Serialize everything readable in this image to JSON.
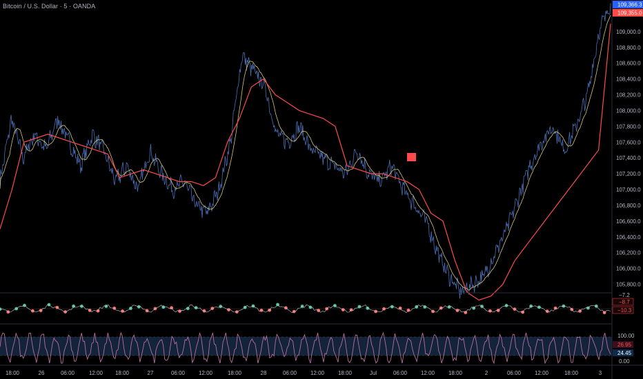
{
  "header": {
    "title": "Bitcoin / U.S. Dollar · 5 · OANDA"
  },
  "colors": {
    "background": "#000000",
    "price_line": "#4a6fb5",
    "ma_fast": "#d8c77a",
    "ma_red": "#ff4a4a",
    "osc_line": "#b86fa0",
    "osc_band": "#12233a",
    "axis_text": "#b2b5be"
  },
  "price_axis": {
    "labels": [
      "109,000.0",
      "108,800.0",
      "108,600.0",
      "108,400.0",
      "108,200.0",
      "108,000.0",
      "107,800.0",
      "107,600.0",
      "107,400.0",
      "107,200.0",
      "107,000.0",
      "106,800.0",
      "106,600.0",
      "106,400.0",
      "106,200.0",
      "106,000.0",
      "105,800.0"
    ],
    "current_price": "109,366.3",
    "secondary_price": "109,355.0"
  },
  "macd_axis": {
    "top_label": "−7.2",
    "mid_label": "−8.7",
    "low_label": "−10.3"
  },
  "stoch_axis": {
    "upper_label": "100.00",
    "k_value": "26.95",
    "d_value": "24.45",
    "lower_label": "0.00"
  },
  "time_axis": {
    "labels": [
      "18:00",
      "26",
      "06:00",
      "12:00",
      "18:00",
      "27",
      "06:00",
      "12:00",
      "18:00",
      "28",
      "06:00",
      "12:00",
      "18:00",
      "Jul",
      "06:00",
      "12:00",
      "18:00",
      "2",
      "06:00",
      "12:00",
      "18:00",
      "3"
    ]
  },
  "chart_data": {
    "type": "line",
    "x_labels": [
      "18:00",
      "26",
      "06:00",
      "12:00",
      "18:00",
      "27",
      "06:00",
      "12:00",
      "18:00",
      "28",
      "06:00",
      "12:00",
      "18:00",
      "Jul",
      "06:00",
      "12:00",
      "18:00",
      "2",
      "06:00",
      "12:00",
      "18:00",
      "3"
    ],
    "ylim": [
      105700,
      109400
    ],
    "series": [
      {
        "values": [
          107100,
          107900,
          107400,
          107700,
          107500,
          107900,
          107600,
          107300,
          107700,
          107500,
          107100,
          107300,
          107000,
          107500,
          107200,
          107000,
          107100,
          106800,
          106700,
          107000,
          107600,
          108700,
          108500,
          108300,
          107700,
          107600,
          107800,
          107500,
          107400,
          107300,
          107200,
          107500,
          107200,
          107100,
          107300,
          107000,
          106800,
          106600,
          106200,
          105900,
          105700,
          105800,
          105900,
          106200,
          106500,
          106900,
          107300,
          107600,
          107800,
          107500,
          107800,
          108200,
          109000,
          109366
        ]
      }
    ],
    "ma_red_values": [
      106500,
      107000,
      107600,
      107650,
      107700,
      107650,
      107600,
      107550,
      107500,
      107450,
      107150,
      107200,
      107250,
      107200,
      107150,
      107100,
      107100,
      107050,
      107150,
      107600,
      107900,
      108300,
      108400,
      108200,
      108100,
      108000,
      107950,
      107900,
      107800,
      107300,
      107250,
      107200,
      107200,
      107150,
      107100,
      107000,
      106700,
      106600,
      106100,
      105700,
      105600,
      105650,
      105800,
      106100,
      106300,
      106500,
      106700,
      106900,
      107100,
      107300,
      107500,
      109100
    ],
    "macd_ylim": [
      -11,
      -6.5
    ],
    "stoch_ylim": [
      0,
      100
    ],
    "stoch_band": [
      20,
      80
    ]
  }
}
